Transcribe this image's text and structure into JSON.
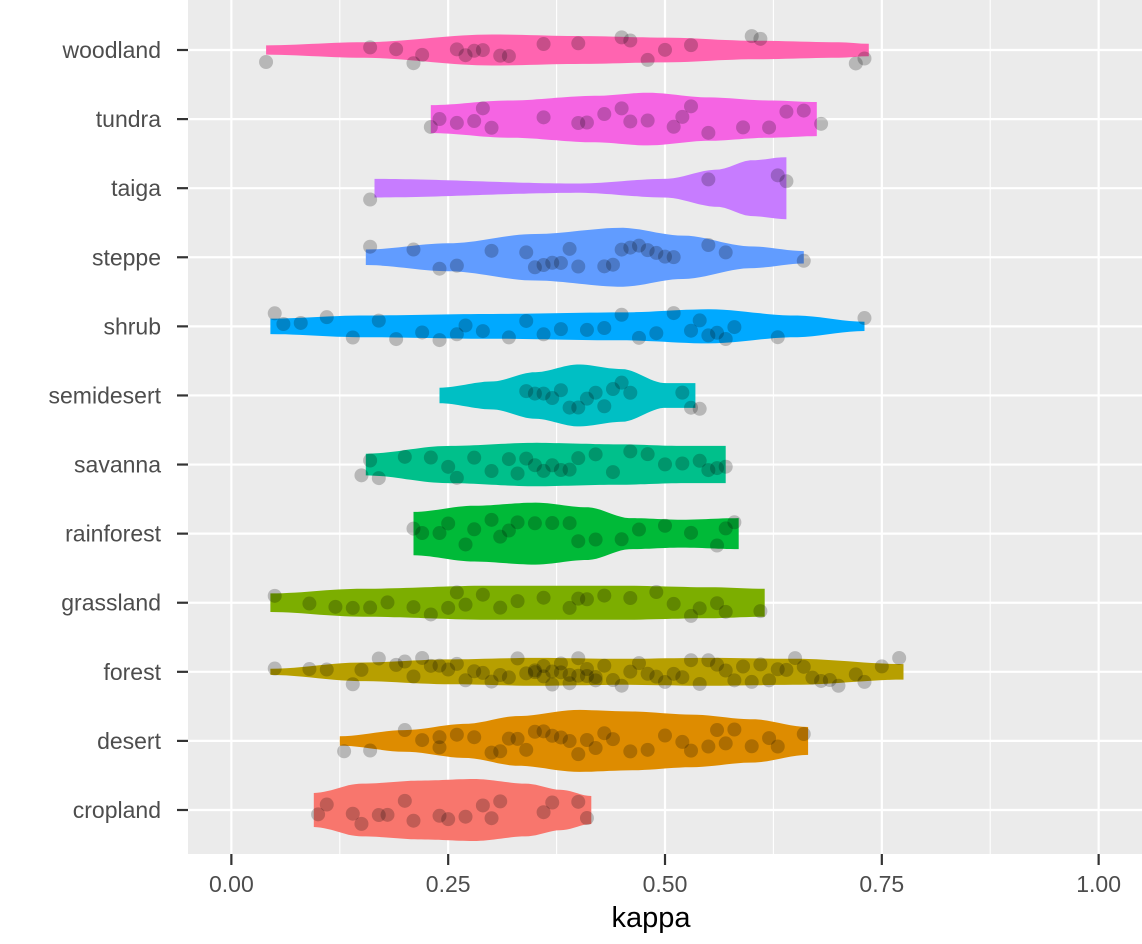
{
  "chart_data": {
    "type": "violin",
    "title": "",
    "xlabel": "kappa",
    "ylabel": "",
    "xlim": [
      -0.05,
      1.05
    ],
    "x_ticks": [
      0.0,
      0.25,
      0.5,
      0.75,
      1.0
    ],
    "x_tick_labels": [
      "0.00",
      "0.25",
      "0.50",
      "0.75",
      "1.00"
    ],
    "grid": true,
    "legend": "none",
    "panel_background": "#ebebeb",
    "grid_color": "#ffffff",
    "point_color": "rgba(0,0,0,0.22)",
    "categories": [
      "cropland",
      "desert",
      "forest",
      "grassland",
      "rainforest",
      "savanna",
      "semidesert",
      "shrub",
      "steppe",
      "taiga",
      "tundra",
      "woodland"
    ],
    "series": [
      {
        "category": "cropland",
        "color": "#F8766D",
        "density": [
          [
            0.095,
            0.55
          ],
          [
            0.15,
            0.85
          ],
          [
            0.22,
            0.95
          ],
          [
            0.28,
            1.0
          ],
          [
            0.34,
            0.85
          ],
          [
            0.38,
            0.65
          ],
          [
            0.415,
            0.45
          ]
        ],
        "points": [
          0.1,
          0.11,
          0.14,
          0.15,
          0.17,
          0.18,
          0.2,
          0.21,
          0.24,
          0.25,
          0.27,
          0.29,
          0.3,
          0.31,
          0.36,
          0.37,
          0.4,
          0.41
        ]
      },
      {
        "category": "desert",
        "color": "#DE8C00",
        "density": [
          [
            0.125,
            0.15
          ],
          [
            0.2,
            0.35
          ],
          [
            0.27,
            0.55
          ],
          [
            0.33,
            0.8
          ],
          [
            0.4,
            1.0
          ],
          [
            0.46,
            0.95
          ],
          [
            0.53,
            0.85
          ],
          [
            0.6,
            0.7
          ],
          [
            0.665,
            0.45
          ]
        ],
        "points": [
          0.13,
          0.16,
          0.2,
          0.22,
          0.24,
          0.24,
          0.26,
          0.28,
          0.3,
          0.31,
          0.32,
          0.33,
          0.34,
          0.35,
          0.36,
          0.37,
          0.38,
          0.39,
          0.4,
          0.41,
          0.42,
          0.43,
          0.44,
          0.46,
          0.48,
          0.5,
          0.52,
          0.53,
          0.55,
          0.56,
          0.57,
          0.58,
          0.6,
          0.62,
          0.63,
          0.66
        ]
      },
      {
        "category": "forest",
        "color": "#B79F00",
        "density": [
          [
            0.045,
            0.1
          ],
          [
            0.15,
            0.3
          ],
          [
            0.25,
            0.4
          ],
          [
            0.35,
            0.45
          ],
          [
            0.45,
            0.42
          ],
          [
            0.55,
            0.45
          ],
          [
            0.65,
            0.42
          ],
          [
            0.775,
            0.25
          ]
        ],
        "points": [
          0.05,
          0.09,
          0.11,
          0.14,
          0.15,
          0.17,
          0.19,
          0.2,
          0.21,
          0.22,
          0.23,
          0.24,
          0.25,
          0.26,
          0.27,
          0.28,
          0.29,
          0.3,
          0.31,
          0.32,
          0.33,
          0.34,
          0.35,
          0.35,
          0.36,
          0.36,
          0.37,
          0.37,
          0.38,
          0.38,
          0.39,
          0.39,
          0.4,
          0.4,
          0.41,
          0.41,
          0.42,
          0.42,
          0.43,
          0.44,
          0.45,
          0.46,
          0.47,
          0.48,
          0.49,
          0.5,
          0.51,
          0.52,
          0.53,
          0.54,
          0.55,
          0.56,
          0.57,
          0.58,
          0.59,
          0.6,
          0.61,
          0.62,
          0.63,
          0.64,
          0.65,
          0.66,
          0.67,
          0.68,
          0.69,
          0.7,
          0.72,
          0.73,
          0.75,
          0.77
        ]
      },
      {
        "category": "grassland",
        "color": "#7CAE00",
        "density": [
          [
            0.045,
            0.3
          ],
          [
            0.15,
            0.45
          ],
          [
            0.3,
            0.55
          ],
          [
            0.45,
            0.55
          ],
          [
            0.55,
            0.5
          ],
          [
            0.615,
            0.45
          ]
        ],
        "points": [
          0.05,
          0.09,
          0.12,
          0.14,
          0.16,
          0.18,
          0.21,
          0.23,
          0.25,
          0.26,
          0.27,
          0.29,
          0.31,
          0.33,
          0.36,
          0.39,
          0.4,
          0.41,
          0.43,
          0.46,
          0.49,
          0.51,
          0.53,
          0.54,
          0.56,
          0.57,
          0.61
        ]
      },
      {
        "category": "rainforest",
        "color": "#00BA38",
        "density": [
          [
            0.21,
            0.7
          ],
          [
            0.28,
            0.9
          ],
          [
            0.35,
            1.0
          ],
          [
            0.41,
            0.85
          ],
          [
            0.46,
            0.5
          ],
          [
            0.52,
            0.45
          ],
          [
            0.585,
            0.5
          ]
        ],
        "points": [
          0.21,
          0.22,
          0.24,
          0.25,
          0.27,
          0.28,
          0.3,
          0.31,
          0.32,
          0.33,
          0.35,
          0.37,
          0.39,
          0.4,
          0.42,
          0.45,
          0.47,
          0.5,
          0.53,
          0.56,
          0.57,
          0.58
        ]
      },
      {
        "category": "savanna",
        "color": "#00C08B",
        "density": [
          [
            0.155,
            0.35
          ],
          [
            0.25,
            0.6
          ],
          [
            0.35,
            0.7
          ],
          [
            0.45,
            0.65
          ],
          [
            0.52,
            0.6
          ],
          [
            0.57,
            0.6
          ]
        ],
        "points": [
          0.15,
          0.16,
          0.17,
          0.2,
          0.23,
          0.25,
          0.26,
          0.28,
          0.3,
          0.32,
          0.33,
          0.34,
          0.35,
          0.36,
          0.37,
          0.38,
          0.39,
          0.4,
          0.42,
          0.44,
          0.46,
          0.48,
          0.5,
          0.52,
          0.54,
          0.55,
          0.56,
          0.57
        ]
      },
      {
        "category": "semidesert",
        "color": "#00BFC4",
        "density": [
          [
            0.24,
            0.25
          ],
          [
            0.3,
            0.45
          ],
          [
            0.35,
            0.75
          ],
          [
            0.4,
            1.0
          ],
          [
            0.45,
            0.85
          ],
          [
            0.5,
            0.4
          ],
          [
            0.535,
            0.4
          ]
        ],
        "points": [
          0.34,
          0.35,
          0.36,
          0.37,
          0.38,
          0.39,
          0.4,
          0.41,
          0.42,
          0.43,
          0.44,
          0.45,
          0.46,
          0.52,
          0.53,
          0.54
        ]
      },
      {
        "category": "shrub",
        "color": "#00A9FF",
        "density": [
          [
            0.045,
            0.25
          ],
          [
            0.15,
            0.35
          ],
          [
            0.3,
            0.4
          ],
          [
            0.45,
            0.45
          ],
          [
            0.55,
            0.55
          ],
          [
            0.65,
            0.35
          ],
          [
            0.73,
            0.15
          ]
        ],
        "points": [
          0.05,
          0.06,
          0.08,
          0.11,
          0.14,
          0.17,
          0.19,
          0.22,
          0.24,
          0.26,
          0.27,
          0.29,
          0.32,
          0.34,
          0.36,
          0.38,
          0.41,
          0.43,
          0.45,
          0.47,
          0.49,
          0.51,
          0.53,
          0.54,
          0.55,
          0.56,
          0.57,
          0.58,
          0.63,
          0.73
        ]
      },
      {
        "category": "steppe",
        "color": "#619CFF",
        "density": [
          [
            0.155,
            0.25
          ],
          [
            0.25,
            0.45
          ],
          [
            0.35,
            0.75
          ],
          [
            0.45,
            0.95
          ],
          [
            0.52,
            0.7
          ],
          [
            0.6,
            0.35
          ],
          [
            0.66,
            0.2
          ]
        ],
        "points": [
          0.16,
          0.21,
          0.24,
          0.26,
          0.3,
          0.34,
          0.35,
          0.36,
          0.37,
          0.38,
          0.39,
          0.4,
          0.43,
          0.44,
          0.45,
          0.46,
          0.47,
          0.48,
          0.49,
          0.5,
          0.51,
          0.55,
          0.57,
          0.66
        ]
      },
      {
        "category": "taiga",
        "color": "#C77CFF",
        "density": [
          [
            0.165,
            0.3
          ],
          [
            0.4,
            0.15
          ],
          [
            0.5,
            0.3
          ],
          [
            0.56,
            0.6
          ],
          [
            0.6,
            0.9
          ],
          [
            0.64,
            1.0
          ]
        ],
        "points": [
          0.16,
          0.55,
          0.63,
          0.64
        ]
      },
      {
        "category": "tundra",
        "color": "#F564E3",
        "density": [
          [
            0.23,
            0.45
          ],
          [
            0.32,
            0.6
          ],
          [
            0.42,
            0.75
          ],
          [
            0.48,
            0.85
          ],
          [
            0.55,
            0.7
          ],
          [
            0.62,
            0.6
          ],
          [
            0.675,
            0.55
          ]
        ],
        "points": [
          0.23,
          0.24,
          0.26,
          0.28,
          0.29,
          0.3,
          0.36,
          0.4,
          0.41,
          0.43,
          0.45,
          0.46,
          0.48,
          0.51,
          0.52,
          0.53,
          0.55,
          0.59,
          0.62,
          0.64,
          0.66,
          0.68
        ]
      },
      {
        "category": "woodland",
        "color": "#FF64B0",
        "density": [
          [
            0.04,
            0.15
          ],
          [
            0.15,
            0.25
          ],
          [
            0.3,
            0.5
          ],
          [
            0.4,
            0.45
          ],
          [
            0.5,
            0.4
          ],
          [
            0.6,
            0.3
          ],
          [
            0.7,
            0.25
          ],
          [
            0.735,
            0.2
          ]
        ],
        "points": [
          0.04,
          0.16,
          0.19,
          0.21,
          0.22,
          0.26,
          0.27,
          0.28,
          0.29,
          0.31,
          0.32,
          0.36,
          0.4,
          0.45,
          0.46,
          0.48,
          0.5,
          0.53,
          0.6,
          0.61,
          0.72,
          0.73
        ]
      }
    ]
  }
}
